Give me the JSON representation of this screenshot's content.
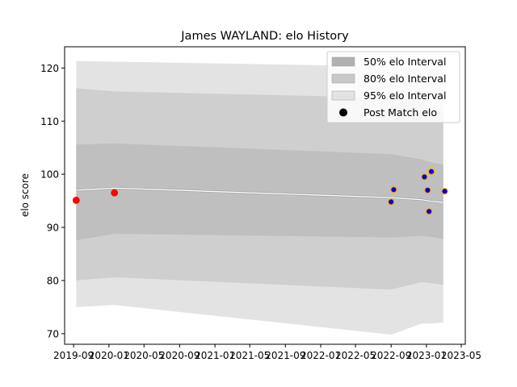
{
  "chart_data": {
    "type": "line",
    "title": "James WAYLAND: elo History",
    "xlabel": "",
    "ylabel": "elo score",
    "x_ticks": [
      "2019-09",
      "2020-01",
      "2020-05",
      "2020-09",
      "2021-01",
      "2021-05",
      "2021-09",
      "2022-01",
      "2022-05",
      "2022-09",
      "2023-01",
      "2023-05"
    ],
    "y_ticks": [
      70,
      80,
      90,
      100,
      110,
      120
    ],
    "xlim": [
      "2019-08-01",
      "2023-05-15"
    ],
    "ylim": [
      68,
      124
    ],
    "grid": false,
    "legend_position": "top-right",
    "colors": {
      "band_95": "#e3e3e3",
      "band_80": "#cfcfcf",
      "band_50": "#bfbfbf",
      "legend_50": "#b0b0b0",
      "legend_80": "#c8c8c8",
      "legend_95": "#e3e3e3",
      "mean_line": "#ffffff",
      "point_red": "#ff0000",
      "point_blue": "#0000cc",
      "point_edge": "#ffa500",
      "legend_marker": "#000000"
    },
    "series": [
      {
        "name": "95% elo Interval",
        "x": [
          "2019-09-10",
          "2020-01-20",
          "2022-09-01",
          "2022-12-15",
          "2023-01-20",
          "2023-02-28"
        ],
        "lower": [
          75.0,
          75.4,
          69.8,
          71.9,
          71.9,
          72.1
        ],
        "upper": [
          121.3,
          121.2,
          120.3,
          120.0,
          120.2,
          120.4
        ]
      },
      {
        "name": "80% elo Interval",
        "x": [
          "2019-09-10",
          "2020-01-20",
          "2022-09-01",
          "2022-12-15",
          "2023-01-20",
          "2023-02-28"
        ],
        "lower": [
          80.0,
          80.6,
          78.3,
          79.7,
          79.5,
          79.2
        ],
        "upper": [
          116.2,
          115.6,
          114.4,
          113.8,
          112.5,
          111.8
        ]
      },
      {
        "name": "50% elo Interval",
        "x": [
          "2019-09-10",
          "2020-01-20",
          "2022-09-01",
          "2022-12-15",
          "2023-01-20",
          "2023-02-28"
        ],
        "lower": [
          87.6,
          88.8,
          88.1,
          88.4,
          88.2,
          87.8
        ],
        "upper": [
          105.6,
          105.8,
          103.8,
          102.8,
          102.2,
          101.8
        ]
      },
      {
        "name": "mean",
        "x": [
          "2019-09-10",
          "2020-01-20",
          "2022-09-01",
          "2022-12-15",
          "2023-01-20",
          "2023-02-28"
        ],
        "values": [
          97.0,
          97.4,
          95.6,
          95.2,
          94.9,
          94.7
        ]
      },
      {
        "name": "Post Match elo",
        "points": [
          {
            "x": "2019-09-10",
            "y": 95.1,
            "style": "red"
          },
          {
            "x": "2020-01-20",
            "y": 96.5,
            "style": "red"
          },
          {
            "x": "2022-09-01",
            "y": 94.8,
            "style": "blue"
          },
          {
            "x": "2022-09-10",
            "y": 97.1,
            "style": "blue"
          },
          {
            "x": "2022-12-25",
            "y": 99.5,
            "style": "blue"
          },
          {
            "x": "2023-01-05",
            "y": 97.0,
            "style": "blue"
          },
          {
            "x": "2023-01-10",
            "y": 93.0,
            "style": "blue"
          },
          {
            "x": "2023-01-18",
            "y": 100.5,
            "style": "blue"
          },
          {
            "x": "2023-03-05",
            "y": 96.8,
            "style": "blue"
          }
        ]
      }
    ],
    "legend": [
      {
        "label": "50% elo Interval",
        "kind": "patch",
        "color_key": "legend_50"
      },
      {
        "label": "80% elo Interval",
        "kind": "patch",
        "color_key": "legend_80"
      },
      {
        "label": "95% elo Interval",
        "kind": "patch",
        "color_key": "legend_95"
      },
      {
        "label": "Post Match elo",
        "kind": "marker",
        "color_key": "legend_marker"
      }
    ]
  }
}
